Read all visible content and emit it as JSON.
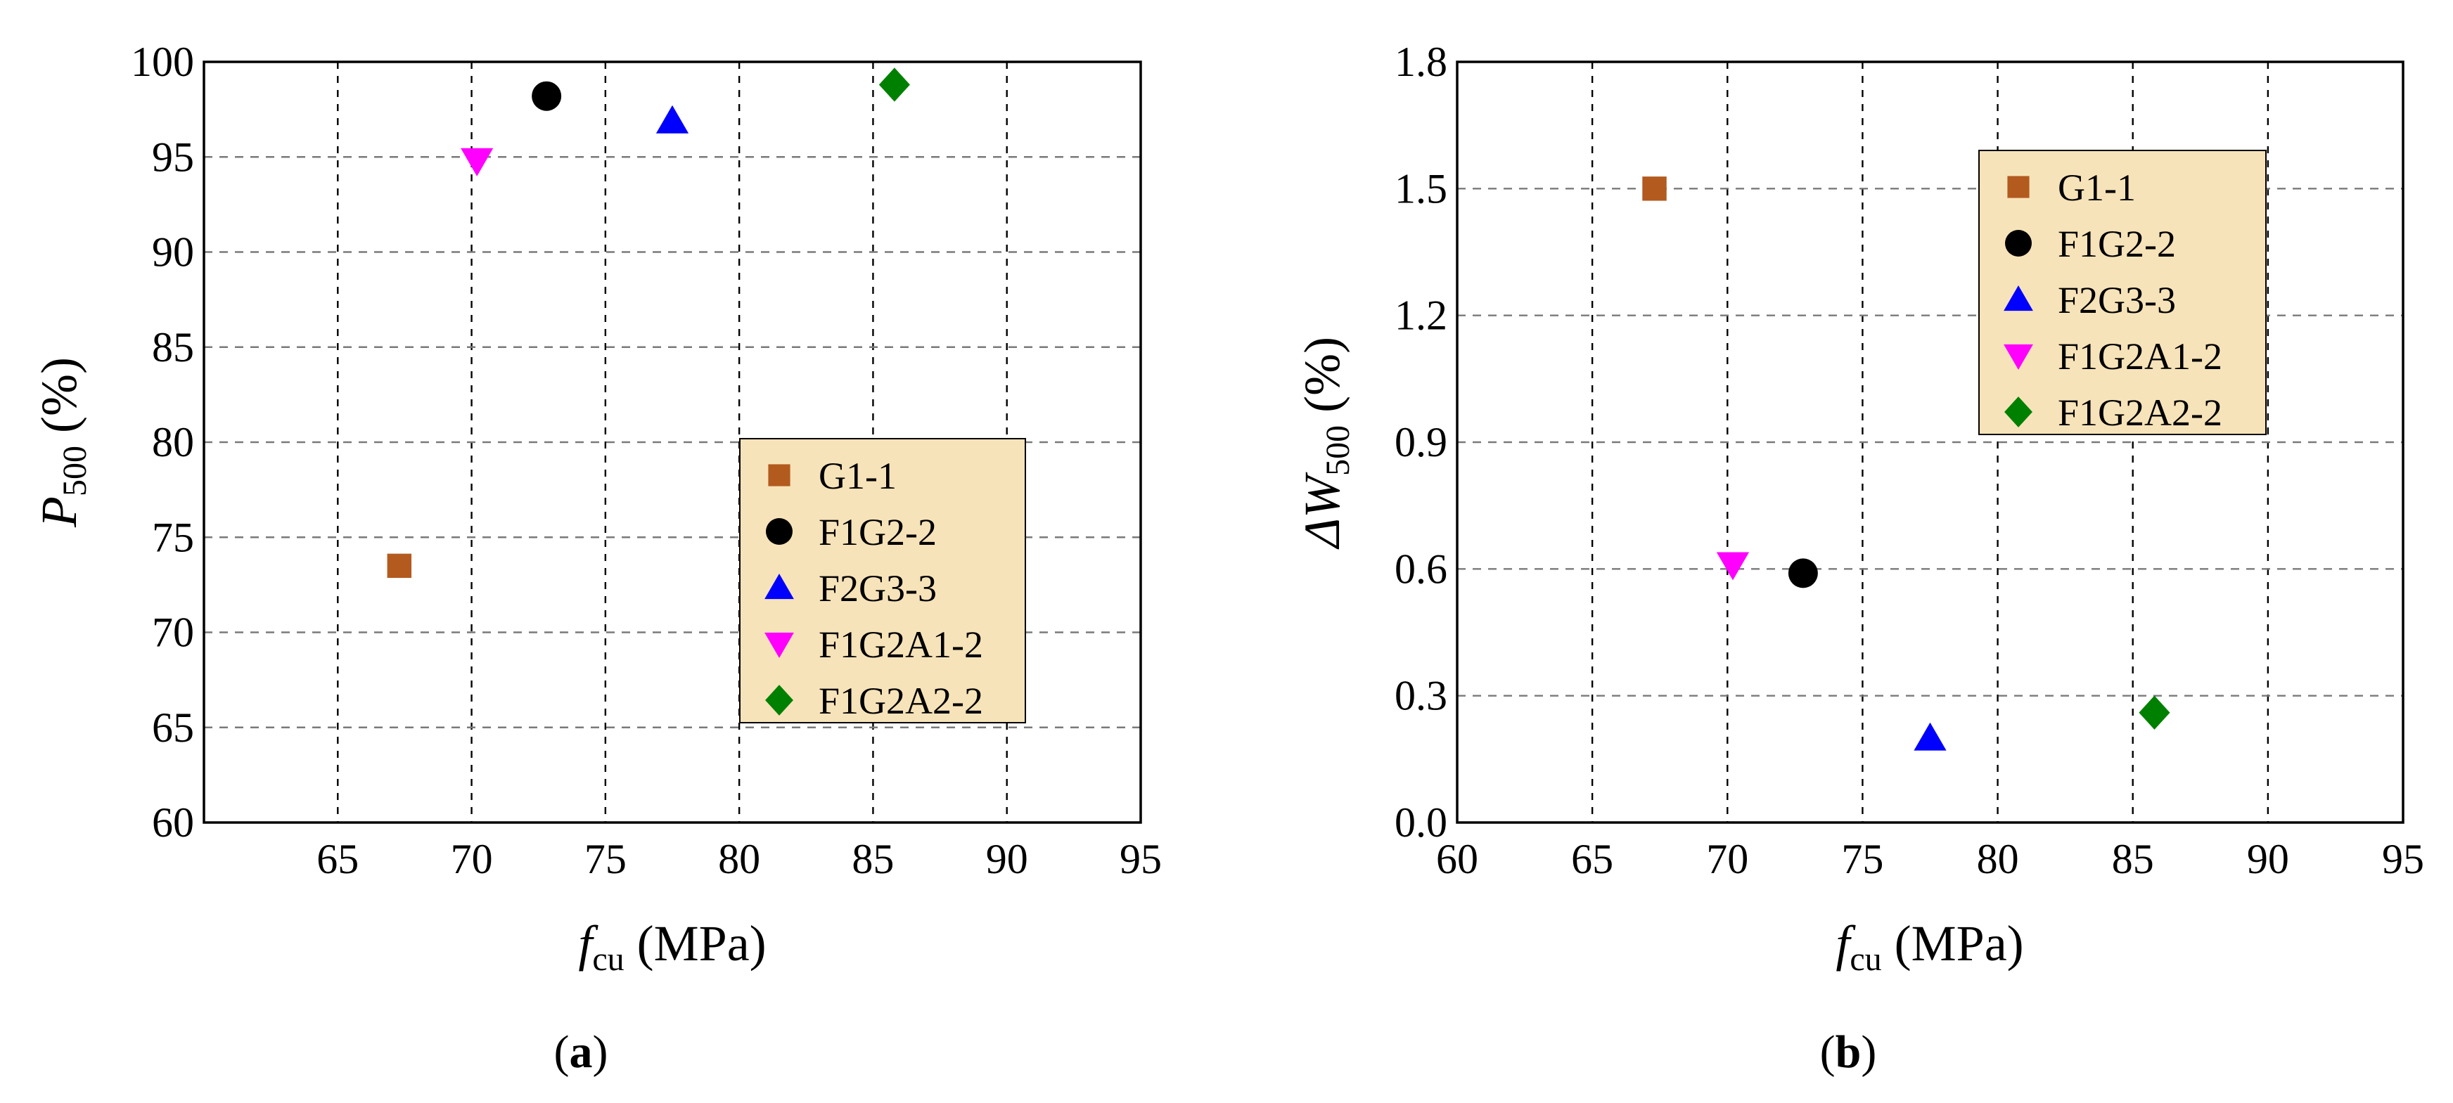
{
  "chart_data": [
    {
      "type": "scatter",
      "panel_label_open": "(",
      "panel_label": "a",
      "panel_label_close": ")",
      "ylabel_main": "P",
      "ylabel_sub": "500",
      "ylabel_unit": " (%)",
      "xlabel_main": "f",
      "xlabel_sub": "cu",
      "xlabel_unit": " (MPa)",
      "xlim": [
        60,
        95
      ],
      "ylim": [
        60,
        100
      ],
      "xticks": [
        65,
        70,
        75,
        80,
        85,
        90,
        95
      ],
      "xtick_labels": [
        "65",
        "70",
        "75",
        "80",
        "85",
        "90",
        "95"
      ],
      "yticks": [
        60,
        65,
        70,
        75,
        80,
        85,
        90,
        95,
        100
      ],
      "ytick_labels": [
        "60",
        "65",
        "70",
        "75",
        "80",
        "85",
        "90",
        "95",
        "100"
      ],
      "grid": true,
      "legend_position": "lower-right",
      "series": [
        {
          "name": "G1-1",
          "marker": "square",
          "color": "#b35a1f",
          "x": 67.3,
          "y": 73.5
        },
        {
          "name": "F1G2-2",
          "marker": "circle",
          "color": "#000000",
          "x": 72.8,
          "y": 98.2
        },
        {
          "name": "F2G3-3",
          "marker": "triangle-up",
          "color": "#0000ff",
          "x": 77.5,
          "y": 96.9
        },
        {
          "name": "F1G2A1-2",
          "marker": "triangle-down",
          "color": "#ff00ff",
          "x": 70.2,
          "y": 94.8
        },
        {
          "name": "F1G2A2-2",
          "marker": "diamond",
          "color": "#008000",
          "x": 85.8,
          "y": 98.8
        }
      ]
    },
    {
      "type": "scatter",
      "panel_label_open": "(",
      "panel_label": "b",
      "panel_label_close": ")",
      "ylabel_main": "ΔW",
      "ylabel_sub": "500",
      "ylabel_unit": " (%)",
      "xlabel_main": "f",
      "xlabel_sub": "cu",
      "xlabel_unit": " (MPa)",
      "xlim": [
        60,
        95
      ],
      "ylim": [
        0.0,
        1.8
      ],
      "xticks": [
        60,
        65,
        70,
        75,
        80,
        85,
        90,
        95
      ],
      "xtick_labels": [
        "60",
        "65",
        "70",
        "75",
        "80",
        "85",
        "90",
        "95"
      ],
      "yticks": [
        0.0,
        0.3,
        0.6,
        0.9,
        1.2,
        1.5,
        1.8
      ],
      "ytick_labels": [
        "0.0",
        "0.3",
        "0.6",
        "0.9",
        "1.2",
        "1.5",
        "1.8"
      ],
      "grid": true,
      "legend_position": "top-right",
      "series": [
        {
          "name": "G1-1",
          "marker": "square",
          "color": "#b35a1f",
          "x": 67.3,
          "y": 1.5
        },
        {
          "name": "F1G2-2",
          "marker": "circle",
          "color": "#000000",
          "x": 72.8,
          "y": 0.59
        },
        {
          "name": "F2G3-3",
          "marker": "triangle-up",
          "color": "#0000ff",
          "x": 77.5,
          "y": 0.2
        },
        {
          "name": "F1G2A1-2",
          "marker": "triangle-down",
          "color": "#ff00ff",
          "x": 70.2,
          "y": 0.61
        },
        {
          "name": "F1G2A2-2",
          "marker": "diamond",
          "color": "#008000",
          "x": 85.8,
          "y": 0.26
        }
      ]
    }
  ],
  "style": {
    "legend_bg": "#f7e3b9",
    "grid_color": "#000000"
  }
}
